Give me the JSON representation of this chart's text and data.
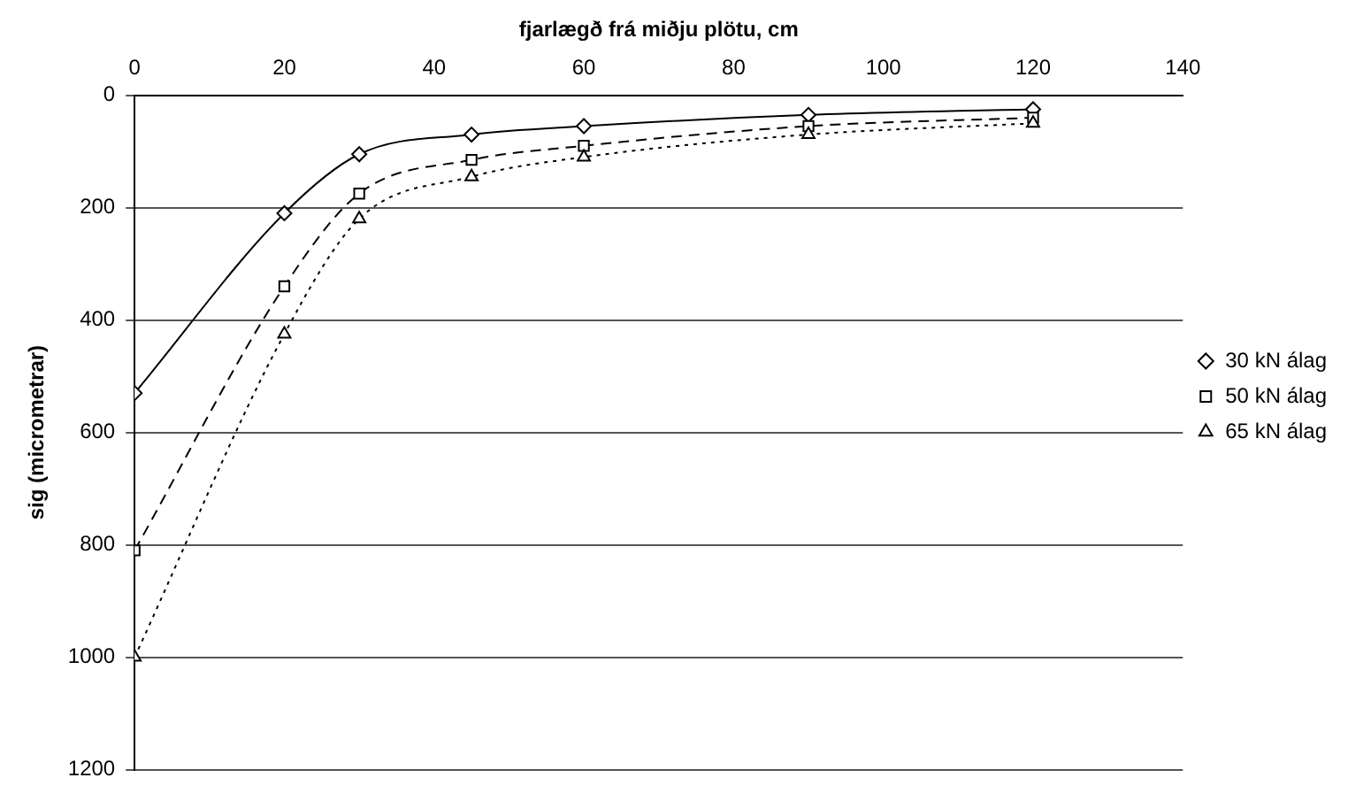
{
  "chart_data": {
    "type": "line",
    "xlabel": "fjarlægð frá miðju plötu, cm",
    "ylabel": "sig (micrometrar)",
    "xlim": [
      0,
      140
    ],
    "xticks": [
      0,
      20,
      40,
      60,
      80,
      100,
      120,
      140
    ],
    "ylim": [
      1200,
      0
    ],
    "yticks": [
      0,
      200,
      400,
      600,
      800,
      1000,
      1200
    ],
    "x": [
      0,
      20,
      30,
      45,
      60,
      90,
      120
    ],
    "grid": "y",
    "legend": "right",
    "series": [
      {
        "name": "30 kN álag",
        "color": "#000000",
        "marker": "diamond",
        "line_style": "solid",
        "values": [
          530,
          210,
          105,
          70,
          55,
          35,
          25
        ]
      },
      {
        "name": "50 kN álag",
        "color": "#000000",
        "marker": "square",
        "line_style": "dashed",
        "values": [
          810,
          340,
          175,
          115,
          90,
          55,
          40
        ]
      },
      {
        "name": "65 kN álag",
        "color": "#000000",
        "marker": "triangle",
        "line_style": "dotted",
        "values": [
          1000,
          425,
          220,
          145,
          110,
          70,
          50
        ]
      }
    ]
  }
}
